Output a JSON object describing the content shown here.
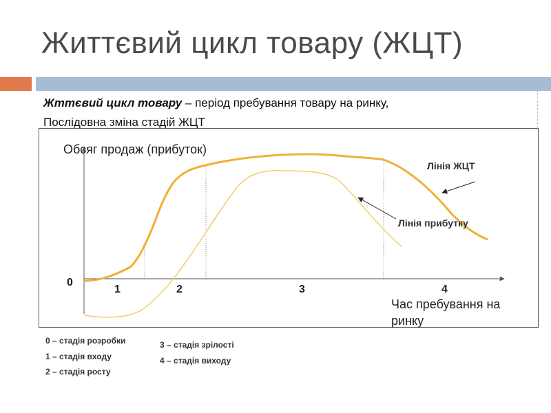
{
  "title": "Життєвий цикл товару (ЖЦТ)",
  "definition": {
    "term": "Жттєвий цикл товару",
    "text": " – період пребування товару на ринку,"
  },
  "subtitle": "Послідовна зміна стадій ЖЦТ",
  "diagram": {
    "y_axis_label": "Обсяг продаж (прибуток)",
    "x_axis_label": "Час пребування на ринку",
    "origin_label": "0",
    "stage_numbers": [
      "1",
      "2",
      "3",
      "4"
    ],
    "curves": [
      {
        "name": "Лінія ЖЦТ",
        "color": "#f0b030"
      },
      {
        "name": "Лінія прибутку",
        "color": "#f3cc6a"
      }
    ]
  },
  "legend": {
    "left": [
      "0 – стадія розробки",
      "1 – стадія входу",
      "2 – стадія росту"
    ],
    "right": [
      "3 – стадія зрілості",
      "4 – стадія виходу"
    ]
  }
}
